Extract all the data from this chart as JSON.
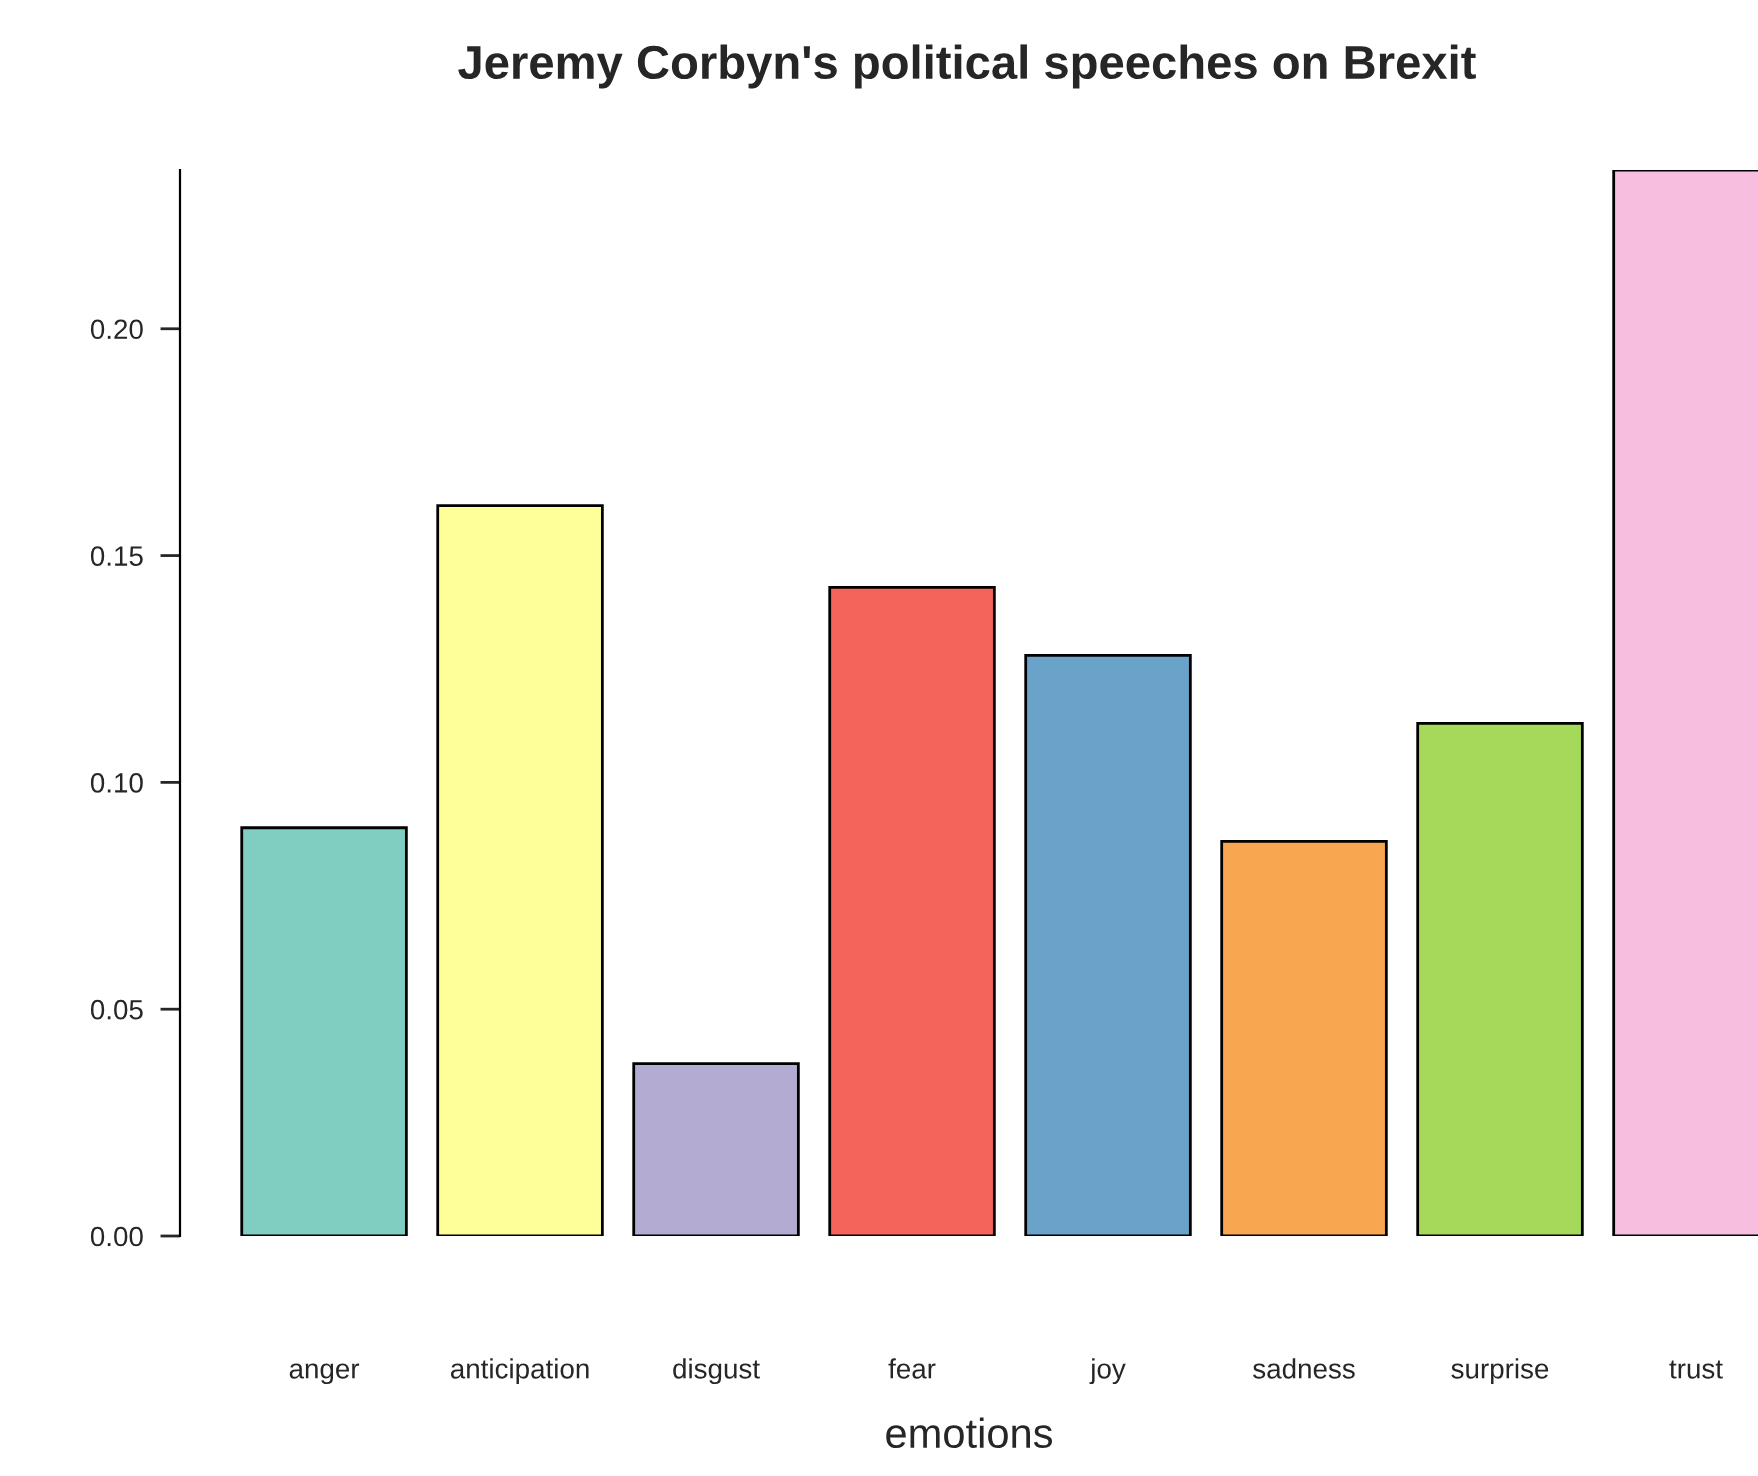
{
  "chart_data": {
    "type": "bar",
    "title": "Jeremy Corbyn's political speeches on Brexit",
    "xlabel": "emotions",
    "categories": [
      "anger",
      "anticipation",
      "disgust",
      "fear",
      "joy",
      "sadness",
      "surprise",
      "trust"
    ],
    "values": [
      0.09,
      0.161,
      0.038,
      0.143,
      0.128,
      0.087,
      0.113,
      0.235
    ],
    "colors": [
      "#80cdc1",
      "#ffff99",
      "#b3abd2",
      "#f4645a",
      "#6aa3c9",
      "#f9a650",
      "#a6d95a",
      "#f7bee0"
    ],
    "ylim": [
      0,
      0.235
    ],
    "yticks": [
      {
        "value": 0,
        "label": "0.00"
      },
      {
        "value": 0.05,
        "label": "0.05"
      },
      {
        "value": 0.1,
        "label": "0.10"
      },
      {
        "value": 0.15,
        "label": "0.15"
      },
      {
        "value": 0.2,
        "label": "0.20"
      }
    ],
    "grid": false,
    "legend": false
  }
}
